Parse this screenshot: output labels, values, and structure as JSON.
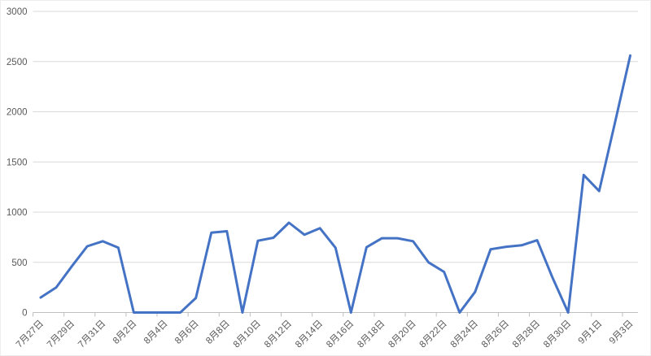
{
  "chart_data": {
    "type": "line",
    "title": "",
    "xlabel": "",
    "ylabel": "",
    "categories": [
      "7月27日",
      "7月28日",
      "7月29日",
      "7月30日",
      "7月31日",
      "8月1日",
      "8月2日",
      "8月3日",
      "8月4日",
      "8月5日",
      "8月6日",
      "8月7日",
      "8月8日",
      "8月9日",
      "8月10日",
      "8月11日",
      "8月12日",
      "8月13日",
      "8月14日",
      "8月15日",
      "8月16日",
      "8月17日",
      "8月18日",
      "8月19日",
      "8月20日",
      "8月21日",
      "8月22日",
      "8月23日",
      "8月24日",
      "8月25日",
      "8月26日",
      "8月27日",
      "8月28日",
      "8月29日",
      "8月30日",
      "8月31日",
      "9月1日",
      "9月2日",
      "9月3日"
    ],
    "values": [
      150,
      250,
      460,
      660,
      710,
      645,
      0,
      0,
      0,
      0,
      145,
      795,
      810,
      0,
      715,
      745,
      895,
      775,
      840,
      645,
      0,
      650,
      740,
      740,
      710,
      500,
      405,
      0,
      205,
      630,
      655,
      670,
      720,
      345,
      0,
      1370,
      1210,
      1880,
      2560
    ],
    "x_tick_labels": [
      "7月27日",
      "7月29日",
      "7月31日",
      "8月2日",
      "8月4日",
      "8月6日",
      "8月8日",
      "8月10日",
      "8月12日",
      "8月14日",
      "8月16日",
      "8月18日",
      "8月20日",
      "8月22日",
      "8月24日",
      "8月26日",
      "8月28日",
      "8月30日",
      "9月1日",
      "9月3日"
    ],
    "label_every": 2,
    "yticks": [
      0,
      500,
      1000,
      1500,
      2000,
      2500,
      3000
    ],
    "ylim": [
      0,
      3000
    ],
    "grid": "horizontal",
    "legend": "none",
    "line_color": "#4472C4",
    "gridline_color": "#d9d9d9",
    "axis_text_color": "#595959"
  }
}
